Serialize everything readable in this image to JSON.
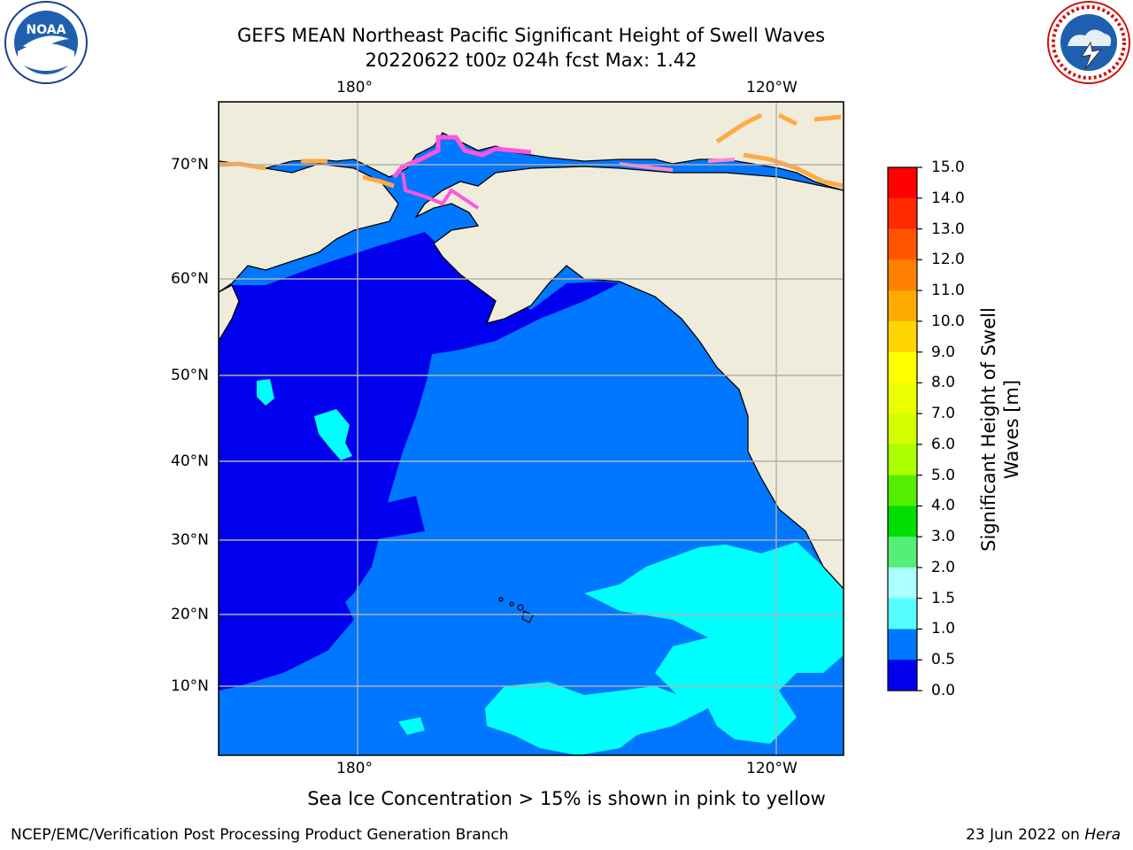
{
  "header": {
    "title": "GEFS MEAN Northeast Pacific Significant Height of Swell Waves",
    "subtitle": "20220622 t00z 024h fcst   Max: 1.42"
  },
  "logos": {
    "left": {
      "name": "noaa-logo",
      "text": "NOAA"
    },
    "right": {
      "name": "nws-logo",
      "text": "NATIONAL WEATHER SERVICE"
    }
  },
  "map": {
    "lon_labels_top": [
      "180°",
      "120°W"
    ],
    "lon_labels_bottom": [
      "180°",
      "120°W"
    ],
    "lat_labels": [
      "70°N",
      "60°N",
      "50°N",
      "40°N",
      "30°N",
      "20°N",
      "10°N"
    ],
    "colors": {
      "land": "#efecdc",
      "ocean_low": "#0000ee",
      "ocean_mid": "#0077ff",
      "ocean_high": "#00ffff",
      "ice_pink": "#ff55dd",
      "ice_orange": "#ffaa44"
    }
  },
  "colorbar": {
    "title_line1": "Significant Height of Swell",
    "title_line2": "Waves [m]",
    "ticks": [
      "15.0",
      "14.0",
      "13.0",
      "12.0",
      "11.0",
      "10.0",
      "9.0",
      "8.0",
      "7.0",
      "6.0",
      "5.0",
      "4.0",
      "3.0",
      "2.0",
      "1.5",
      "1.0",
      "0.5",
      "0.0"
    ],
    "colors": [
      "#ff0000",
      "#ff2a00",
      "#ff5500",
      "#ff8000",
      "#ffaa00",
      "#ffd400",
      "#ffff00",
      "#eaff00",
      "#d4ff00",
      "#aaff00",
      "#55ee00",
      "#00dd00",
      "#55ee77",
      "#aaffff",
      "#55ffff",
      "#00ffff",
      "#0077ff",
      "#0000ee"
    ]
  },
  "note": "Sea Ice Concentration > 15% is shown in pink to yellow",
  "footer": {
    "left": "NCEP/EMC/Verification Post Processing Product Generation Branch",
    "right_prefix": "23 Jun 2022 on ",
    "right_host": "Hera"
  }
}
